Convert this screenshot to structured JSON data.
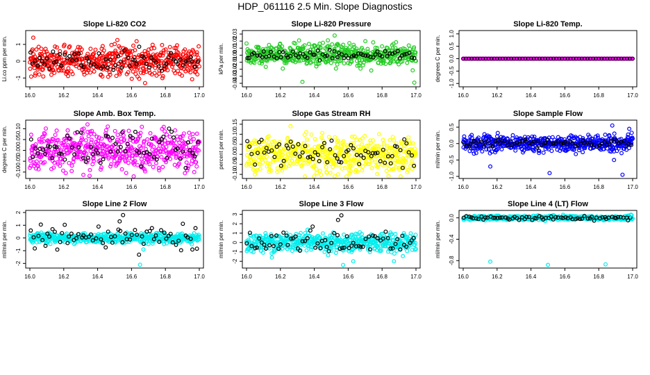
{
  "figure_title": "HDP_061116  2.5 Min. Slope Diagnostics",
  "chart_data": [
    {
      "type": "scatter",
      "title": "Slope Li-820 CO2",
      "ylabel": "Li.co ppm per min.",
      "xlim": [
        16.0,
        17.0
      ],
      "ylim": [
        -1.4,
        1.7
      ],
      "xticks": [
        "16.0",
        "16.2",
        "16.4",
        "16.6",
        "16.8",
        "17.0"
      ],
      "yticks": [
        -1,
        0,
        1
      ],
      "ytick_labels": [
        "-1",
        "0",
        "1"
      ],
      "point_color": "#ff0000",
      "background_spread": 0.45,
      "overlay_spread": 0.35,
      "outliers": [
        [
          16.02,
          1.4
        ],
        [
          16.68,
          -1.3
        ],
        [
          16.67,
          -0.7
        ],
        [
          16.42,
          -0.8
        ],
        [
          16.43,
          0.9
        ]
      ]
    },
    {
      "type": "scatter",
      "title": "Slope Li-820 Pressure",
      "ylabel": "kPa per min.",
      "xlim": [
        16.0,
        17.0
      ],
      "ylim": [
        -0.042,
        0.032
      ],
      "xticks": [
        "16.0",
        "16.2",
        "16.4",
        "16.6",
        "16.8",
        "17.0"
      ],
      "yticks": [
        -0.04,
        -0.03,
        -0.02,
        -0.01,
        0,
        0.01,
        0.02,
        0.03
      ],
      "ytick_labels": [
        "-0.04",
        "-0.03",
        "-0.02",
        "-0.01",
        "0.00",
        "0.01",
        "0.02",
        "0.03"
      ],
      "point_color": "#22cc22",
      "background_spread": 0.008,
      "overlay_spread": 0.003,
      "outliers": [
        [
          16.33,
          -0.038
        ],
        [
          16.99,
          -0.039
        ],
        [
          16.52,
          0.028
        ],
        [
          16.48,
          0.021
        ]
      ]
    },
    {
      "type": "scatter",
      "title": "Slope Li-820 Temp.",
      "ylabel": "degrees C per min.",
      "xlim": [
        16.0,
        17.0
      ],
      "ylim": [
        -1.05,
        1.05
      ],
      "xticks": [
        "16.0",
        "16.2",
        "16.4",
        "16.6",
        "16.8",
        "17.0"
      ],
      "yticks": [
        -1,
        -0.5,
        0,
        0.5,
        1
      ],
      "ytick_labels": [
        "-1.0",
        "-0.5",
        "0.0",
        "0.5",
        "1.0"
      ],
      "point_color": "#ff00ff",
      "background_spread": 0,
      "overlay_spread": 0,
      "outliers": []
    },
    {
      "type": "scatter",
      "title": "Slope Amb. Box Temp.",
      "ylabel": "degrees C per min.",
      "xlim": [
        16.0,
        17.0
      ],
      "ylim": [
        -0.12,
        0.13
      ],
      "xticks": [
        "16.0",
        "16.2",
        "16.4",
        "16.6",
        "16.8",
        "17.0"
      ],
      "yticks": [
        -0.1,
        -0.05,
        0,
        0.05,
        0.1
      ],
      "ytick_labels": [
        "-0.10",
        "-0.05",
        "0.00",
        "0.05",
        "0.10"
      ],
      "point_color": "#ff00ff",
      "background_spread": 0.045,
      "overlay_spread": 0.04,
      "outliers": [
        [
          16.34,
          0.12
        ],
        [
          16.46,
          0.11
        ],
        [
          16.97,
          -0.1
        ]
      ]
    },
    {
      "type": "scatter",
      "title": "Slope Gas Stream RH",
      "ylabel": "percent per min.",
      "xlim": [
        16.0,
        17.0
      ],
      "ylim": [
        -0.11,
        0.16
      ],
      "xticks": [
        "16.0",
        "16.2",
        "16.4",
        "16.6",
        "16.8",
        "17.0"
      ],
      "yticks": [
        -0.1,
        -0.05,
        0,
        0.05,
        0.1,
        0.15
      ],
      "ytick_labels": [
        "-0.10",
        "-0.05",
        "0.00",
        "0.05",
        "0.10",
        "0.15"
      ],
      "point_color": "#ffff00",
      "background_spread": 0.045,
      "overlay_spread": 0.04,
      "outliers": [
        [
          16.26,
          0.14
        ],
        [
          16.54,
          -0.1
        ],
        [
          16.05,
          -0.1
        ]
      ]
    },
    {
      "type": "scatter",
      "title": "Slope Sample Flow",
      "ylabel": "ml/min per min.",
      "xlim": [
        16.0,
        17.0
      ],
      "ylim": [
        -1.0,
        0.65
      ],
      "xticks": [
        "16.0",
        "16.2",
        "16.4",
        "16.6",
        "16.8",
        "17.0"
      ],
      "yticks": [
        -1,
        -0.5,
        0,
        0.5
      ],
      "ytick_labels": [
        "-1.0",
        "-0.5",
        "0.0",
        "0.5"
      ],
      "point_color": "#0000ff",
      "background_spread": 0.12,
      "overlay_spread": 0.06,
      "outliers": [
        [
          16.88,
          0.55
        ],
        [
          16.16,
          -0.7
        ],
        [
          16.51,
          -0.9
        ],
        [
          16.89,
          -0.5
        ],
        [
          16.98,
          0.45
        ],
        [
          16.94,
          -0.95
        ]
      ]
    },
    {
      "type": "scatter",
      "title": "Slope Line 2 Flow",
      "ylabel": "ml/min per min.",
      "xlim": [
        16.0,
        17.0
      ],
      "ylim": [
        -2.2,
        2.0
      ],
      "xticks": [
        "16.0",
        "16.2",
        "16.4",
        "16.6",
        "16.8",
        "17.0"
      ],
      "yticks": [
        -2,
        -1,
        0,
        1,
        2
      ],
      "ytick_labels": [
        "-2",
        "-1",
        "0",
        "1",
        "2"
      ],
      "point_color": "#00eeee",
      "background_spread": 0.18,
      "overlay_spread": 0.55,
      "outliers": [
        [
          16.55,
          1.8
        ],
        [
          16.65,
          -2.1
        ],
        [
          16.53,
          1.3
        ],
        [
          16.67,
          -0.9
        ]
      ]
    },
    {
      "type": "scatter",
      "title": "Slope Line 3 Flow",
      "ylabel": "ml/min per min.",
      "xlim": [
        16.0,
        17.0
      ],
      "ylim": [
        -2.5,
        3.2
      ],
      "xticks": [
        "16.0",
        "16.2",
        "16.4",
        "16.6",
        "16.8",
        "17.0"
      ],
      "yticks": [
        -2,
        -1,
        0,
        1,
        2,
        3
      ],
      "ytick_labels": [
        "-2",
        "-1",
        "0",
        "1",
        "2",
        "3"
      ],
      "point_color": "#00eeee",
      "background_spread": 0.5,
      "overlay_spread": 0.6,
      "outliers": [
        [
          16.56,
          2.9
        ],
        [
          16.54,
          2.4
        ],
        [
          16.57,
          -2.4
        ],
        [
          16.63,
          -2.0
        ],
        [
          16.15,
          -1.6
        ],
        [
          16.87,
          -2.0
        ]
      ]
    },
    {
      "type": "scatter",
      "title": "Slope Line 4 (LT) Flow",
      "ylabel": "ml/min per min.",
      "xlim": [
        16.0,
        17.0
      ],
      "ylim": [
        -0.9,
        0.1
      ],
      "xticks": [
        "16.0",
        "16.2",
        "16.4",
        "16.6",
        "16.8",
        "17.0"
      ],
      "yticks": [
        -0.8,
        -0.4,
        0
      ],
      "ytick_labels": [
        "-0.8",
        "-0.4",
        "0.0"
      ],
      "point_color": "#00eeee",
      "background_spread": 0.02,
      "overlay_spread": 0.02,
      "outliers": [
        [
          16.16,
          -0.82
        ],
        [
          16.5,
          -0.88
        ],
        [
          16.84,
          -0.87
        ],
        [
          16.99,
          0.06
        ]
      ]
    }
  ]
}
